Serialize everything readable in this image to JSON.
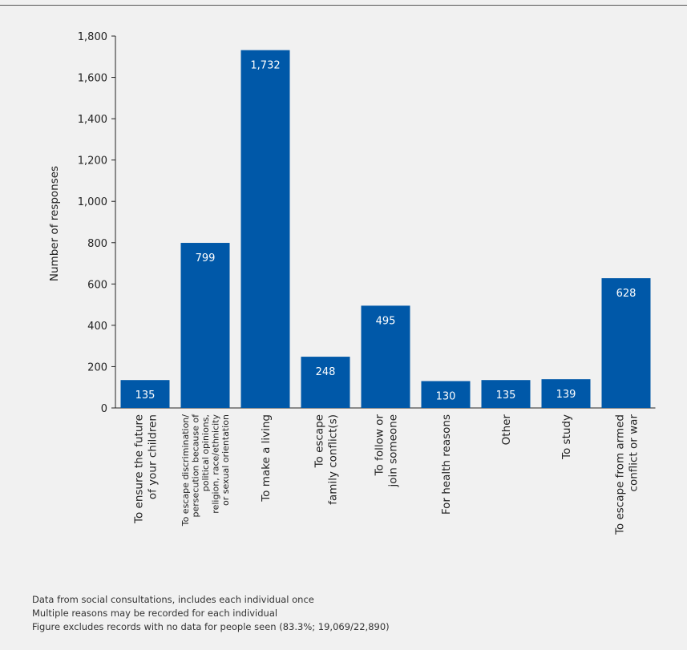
{
  "chart_data": {
    "type": "bar",
    "ylabel": "Number of responses",
    "xlabel": "",
    "ylim": [
      0,
      1800
    ],
    "yticks": [
      0,
      200,
      400,
      600,
      800,
      1000,
      1200,
      1400,
      1600,
      1800
    ],
    "ytick_labels": [
      "0",
      "200",
      "400",
      "600",
      "800",
      "1,000",
      "1,200",
      "1,400",
      "1,600",
      "1,800"
    ],
    "categories": [
      [
        "To ensure the future",
        "of your children"
      ],
      [
        "To escape discrimination/",
        "persecution because of",
        "political opinions,",
        "religion, race/ethnicity",
        "or sexual orientation"
      ],
      [
        "To make a living"
      ],
      [
        "To escape",
        "family conflict(s)"
      ],
      [
        "To follow or",
        "join someone"
      ],
      [
        "For health reasons"
      ],
      [
        "Other"
      ],
      [
        "To study"
      ],
      [
        "To escape from armed",
        "conflict or war"
      ]
    ],
    "values": [
      135,
      799,
      1732,
      248,
      495,
      130,
      135,
      139,
      628
    ],
    "value_labels": [
      "135",
      "799",
      "1,732",
      "248",
      "495",
      "130",
      "135",
      "139",
      "628"
    ],
    "bar_color": "#0058a8",
    "grid": false,
    "legend": "none"
  },
  "notes": [
    "Data from social consultations, includes each individual once",
    "Multiple reasons may be recorded for each individual",
    "Figure excludes records with no data for people seen (83.3%; 19,069/22,890)"
  ]
}
